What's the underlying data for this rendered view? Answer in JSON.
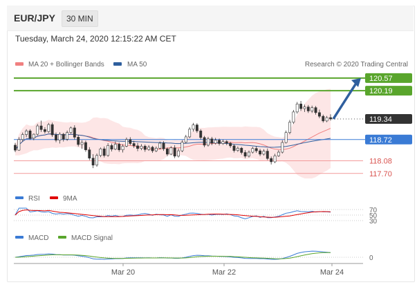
{
  "header": {
    "pair": "EUR/JPY",
    "timeframe": "30 MIN"
  },
  "timestamp": "Tuesday, March 24, 2020 12:15:22 AM CET",
  "legend": {
    "ma20": "MA 20 + Bollinger Bands",
    "ma50": "MA 50",
    "credit": "Research © 2020 Trading Central",
    "rsi": "RSI",
    "rsi_ma": "9MA",
    "macd": "MACD",
    "macd_signal": "MACD Signal"
  },
  "colors": {
    "ma20": "#f08080",
    "ma50": "#2f5f9e",
    "green": "#59a52c",
    "blue": "#3a7bd5",
    "red": "#d9534f",
    "candle_up": "#ffffff",
    "candle_down": "#333333"
  },
  "levels": [
    {
      "name": "resistance-2",
      "value": 120.57,
      "label": "120.57",
      "color": "#59a52c"
    },
    {
      "name": "resistance-1",
      "value": 120.19,
      "label": "120.19",
      "color": "#59a52c"
    },
    {
      "name": "last-price",
      "value": 119.34,
      "label": "119.34",
      "color": "#333333"
    },
    {
      "name": "pivot",
      "value": 118.72,
      "label": "118.72",
      "color": "#3a7bd5"
    },
    {
      "name": "support-1",
      "value": 118.08,
      "label": "118.08",
      "color": "#d9534f"
    },
    {
      "name": "support-2",
      "value": 117.7,
      "label": "117.70",
      "color": "#d9534f"
    }
  ],
  "chart_data": {
    "type": "candlestick",
    "x_tick_labels": [
      "Mar 20",
      "Mar 22",
      "Mar 24"
    ],
    "price_range": [
      117.3,
      120.9
    ],
    "rsi_levels": [
      "70",
      "50",
      "30"
    ],
    "macd_level": "0",
    "ohlc": [
      [
        118.55,
        118.62,
        118.34,
        118.4
      ],
      [
        118.4,
        118.79,
        118.38,
        118.72
      ],
      [
        118.72,
        118.93,
        118.66,
        118.87
      ],
      [
        118.87,
        119.03,
        118.79,
        118.98
      ],
      [
        118.98,
        119.03,
        118.71,
        118.76
      ],
      [
        118.76,
        118.9,
        118.7,
        118.88
      ],
      [
        118.88,
        119.19,
        118.84,
        119.13
      ],
      [
        119.13,
        119.29,
        118.95,
        119.02
      ],
      [
        119.02,
        119.09,
        118.9,
        118.96
      ],
      [
        118.96,
        119.22,
        118.92,
        119.17
      ],
      [
        119.17,
        119.23,
        118.8,
        118.86
      ],
      [
        118.86,
        118.93,
        118.64,
        118.7
      ],
      [
        118.7,
        118.94,
        118.6,
        118.88
      ],
      [
        118.88,
        118.92,
        118.66,
        118.73
      ],
      [
        118.73,
        118.99,
        118.68,
        118.93
      ],
      [
        118.93,
        119.11,
        118.9,
        119.07
      ],
      [
        119.07,
        119.15,
        118.72,
        118.79
      ],
      [
        118.79,
        118.86,
        118.51,
        118.57
      ],
      [
        118.57,
        118.7,
        118.44,
        118.63
      ],
      [
        118.63,
        118.69,
        118.35,
        118.41
      ],
      [
        118.41,
        118.49,
        118.1,
        118.16
      ],
      [
        118.16,
        118.28,
        117.86,
        117.95
      ],
      [
        117.95,
        118.3,
        117.9,
        118.24
      ],
      [
        118.24,
        118.48,
        118.19,
        118.44
      ],
      [
        118.44,
        118.51,
        118.18,
        118.24
      ],
      [
        118.24,
        118.61,
        118.2,
        118.54
      ],
      [
        118.54,
        118.6,
        118.36,
        118.43
      ],
      [
        118.43,
        118.66,
        118.4,
        118.58
      ],
      [
        118.58,
        118.63,
        118.35,
        118.41
      ],
      [
        118.41,
        118.58,
        118.33,
        118.52
      ],
      [
        118.52,
        118.78,
        118.49,
        118.72
      ],
      [
        118.72,
        118.79,
        118.55,
        118.6
      ],
      [
        118.6,
        118.68,
        118.47,
        118.53
      ],
      [
        118.53,
        118.62,
        118.37,
        118.45
      ],
      [
        118.45,
        118.58,
        118.4,
        118.52
      ],
      [
        118.52,
        118.57,
        118.35,
        118.42
      ],
      [
        118.42,
        118.55,
        118.38,
        118.49
      ],
      [
        118.49,
        118.53,
        118.32,
        118.38
      ],
      [
        118.38,
        118.51,
        118.34,
        118.46
      ],
      [
        118.46,
        118.66,
        118.42,
        118.61
      ],
      [
        118.61,
        118.67,
        118.38,
        118.44
      ],
      [
        118.44,
        118.48,
        118.22,
        118.28
      ],
      [
        118.28,
        118.52,
        118.25,
        118.47
      ],
      [
        118.47,
        118.55,
        118.16,
        118.22
      ],
      [
        118.22,
        118.45,
        118.18,
        118.38
      ],
      [
        118.38,
        118.7,
        118.34,
        118.64
      ],
      [
        118.64,
        118.86,
        118.6,
        118.8
      ],
      [
        118.8,
        119.09,
        118.76,
        119.03
      ],
      [
        119.03,
        119.22,
        118.96,
        119.16
      ],
      [
        119.16,
        119.21,
        118.92,
        118.98
      ],
      [
        118.98,
        119.03,
        118.72,
        118.78
      ],
      [
        118.78,
        118.83,
        118.49,
        118.55
      ],
      [
        118.55,
        118.8,
        118.51,
        118.74
      ],
      [
        118.74,
        118.8,
        118.55,
        118.61
      ],
      [
        118.61,
        118.77,
        118.57,
        118.7
      ],
      [
        118.7,
        118.75,
        118.54,
        118.6
      ],
      [
        118.6,
        118.72,
        118.56,
        118.66
      ],
      [
        118.66,
        118.7,
        118.55,
        118.61
      ],
      [
        118.61,
        118.65,
        118.47,
        118.53
      ],
      [
        118.53,
        118.58,
        118.33,
        118.39
      ],
      [
        118.39,
        118.51,
        118.35,
        118.46
      ],
      [
        118.46,
        118.5,
        118.27,
        118.33
      ],
      [
        118.33,
        118.4,
        118.16,
        118.22
      ],
      [
        118.22,
        118.39,
        118.18,
        118.34
      ],
      [
        118.34,
        118.5,
        118.3,
        118.45
      ],
      [
        118.45,
        118.52,
        118.32,
        118.38
      ],
      [
        118.38,
        118.44,
        118.22,
        118.28
      ],
      [
        118.28,
        118.43,
        118.24,
        118.37
      ],
      [
        118.37,
        118.45,
        118.1,
        118.15
      ],
      [
        118.15,
        118.21,
        117.97,
        118.05
      ],
      [
        118.05,
        118.29,
        118.01,
        118.23
      ],
      [
        118.23,
        118.4,
        118.2,
        118.34
      ],
      [
        118.34,
        118.7,
        118.3,
        118.63
      ],
      [
        118.63,
        118.99,
        118.6,
        118.93
      ],
      [
        118.93,
        119.31,
        118.88,
        119.24
      ],
      [
        119.24,
        119.61,
        119.19,
        119.55
      ],
      [
        119.55,
        119.85,
        119.5,
        119.79
      ],
      [
        119.79,
        119.88,
        119.58,
        119.65
      ],
      [
        119.65,
        119.77,
        119.55,
        119.7
      ],
      [
        119.7,
        119.76,
        119.52,
        119.58
      ],
      [
        119.58,
        119.74,
        119.52,
        119.68
      ],
      [
        119.68,
        119.73,
        119.47,
        119.53
      ],
      [
        119.53,
        119.62,
        119.36,
        119.42
      ],
      [
        119.42,
        119.47,
        119.23,
        119.28
      ],
      [
        119.28,
        119.43,
        119.24,
        119.38
      ],
      [
        119.38,
        119.48,
        119.29,
        119.34
      ]
    ]
  }
}
